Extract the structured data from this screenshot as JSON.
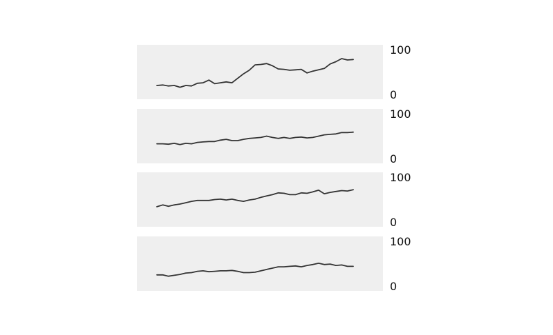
{
  "chart_data": [
    {
      "type": "line",
      "ylim": [
        0,
        100
      ],
      "y_ticks": [
        "100",
        "0"
      ],
      "grid": false,
      "colors": {
        "background": "#efefef",
        "line": "#333333"
      },
      "values": [
        20,
        21,
        19,
        20,
        16,
        20,
        19,
        25,
        26,
        32,
        24,
        26,
        28,
        26,
        36,
        46,
        54,
        66,
        67,
        69,
        64,
        57,
        56,
        54,
        55,
        56,
        48,
        52,
        55,
        58,
        68,
        73,
        80,
        77,
        78
      ]
    },
    {
      "type": "line",
      "ylim": [
        0,
        100
      ],
      "y_ticks": [
        "100",
        "0"
      ],
      "grid": false,
      "colors": {
        "background": "#efefef",
        "line": "#333333"
      },
      "values": [
        33,
        33,
        32,
        34,
        31,
        34,
        33,
        36,
        37,
        38,
        38,
        41,
        43,
        40,
        40,
        43,
        45,
        46,
        47,
        50,
        47,
        45,
        47,
        45,
        47,
        48,
        46,
        47,
        50,
        53,
        54,
        55,
        58,
        58,
        59
      ]
    },
    {
      "type": "line",
      "ylim": [
        0,
        100
      ],
      "y_ticks": [
        "100",
        "0"
      ],
      "grid": false,
      "colors": {
        "background": "#efefef",
        "line": "#333333"
      },
      "values": [
        34,
        38,
        35,
        38,
        40,
        43,
        46,
        48,
        48,
        48,
        50,
        51,
        49,
        51,
        48,
        46,
        49,
        51,
        55,
        58,
        61,
        65,
        64,
        61,
        61,
        65,
        64,
        67,
        71,
        63,
        66,
        68,
        70,
        69,
        72
      ]
    },
    {
      "type": "line",
      "ylim": [
        0,
        100
      ],
      "y_ticks": [
        "100",
        "0"
      ],
      "grid": false,
      "colors": {
        "background": "#efefef",
        "line": "#333333"
      },
      "values": [
        25,
        25,
        22,
        24,
        26,
        29,
        30,
        33,
        34,
        32,
        33,
        34,
        34,
        35,
        33,
        30,
        30,
        31,
        34,
        37,
        40,
        43,
        43,
        44,
        45,
        43,
        46,
        48,
        51,
        48,
        49,
        46,
        47,
        44,
        44
      ]
    }
  ]
}
